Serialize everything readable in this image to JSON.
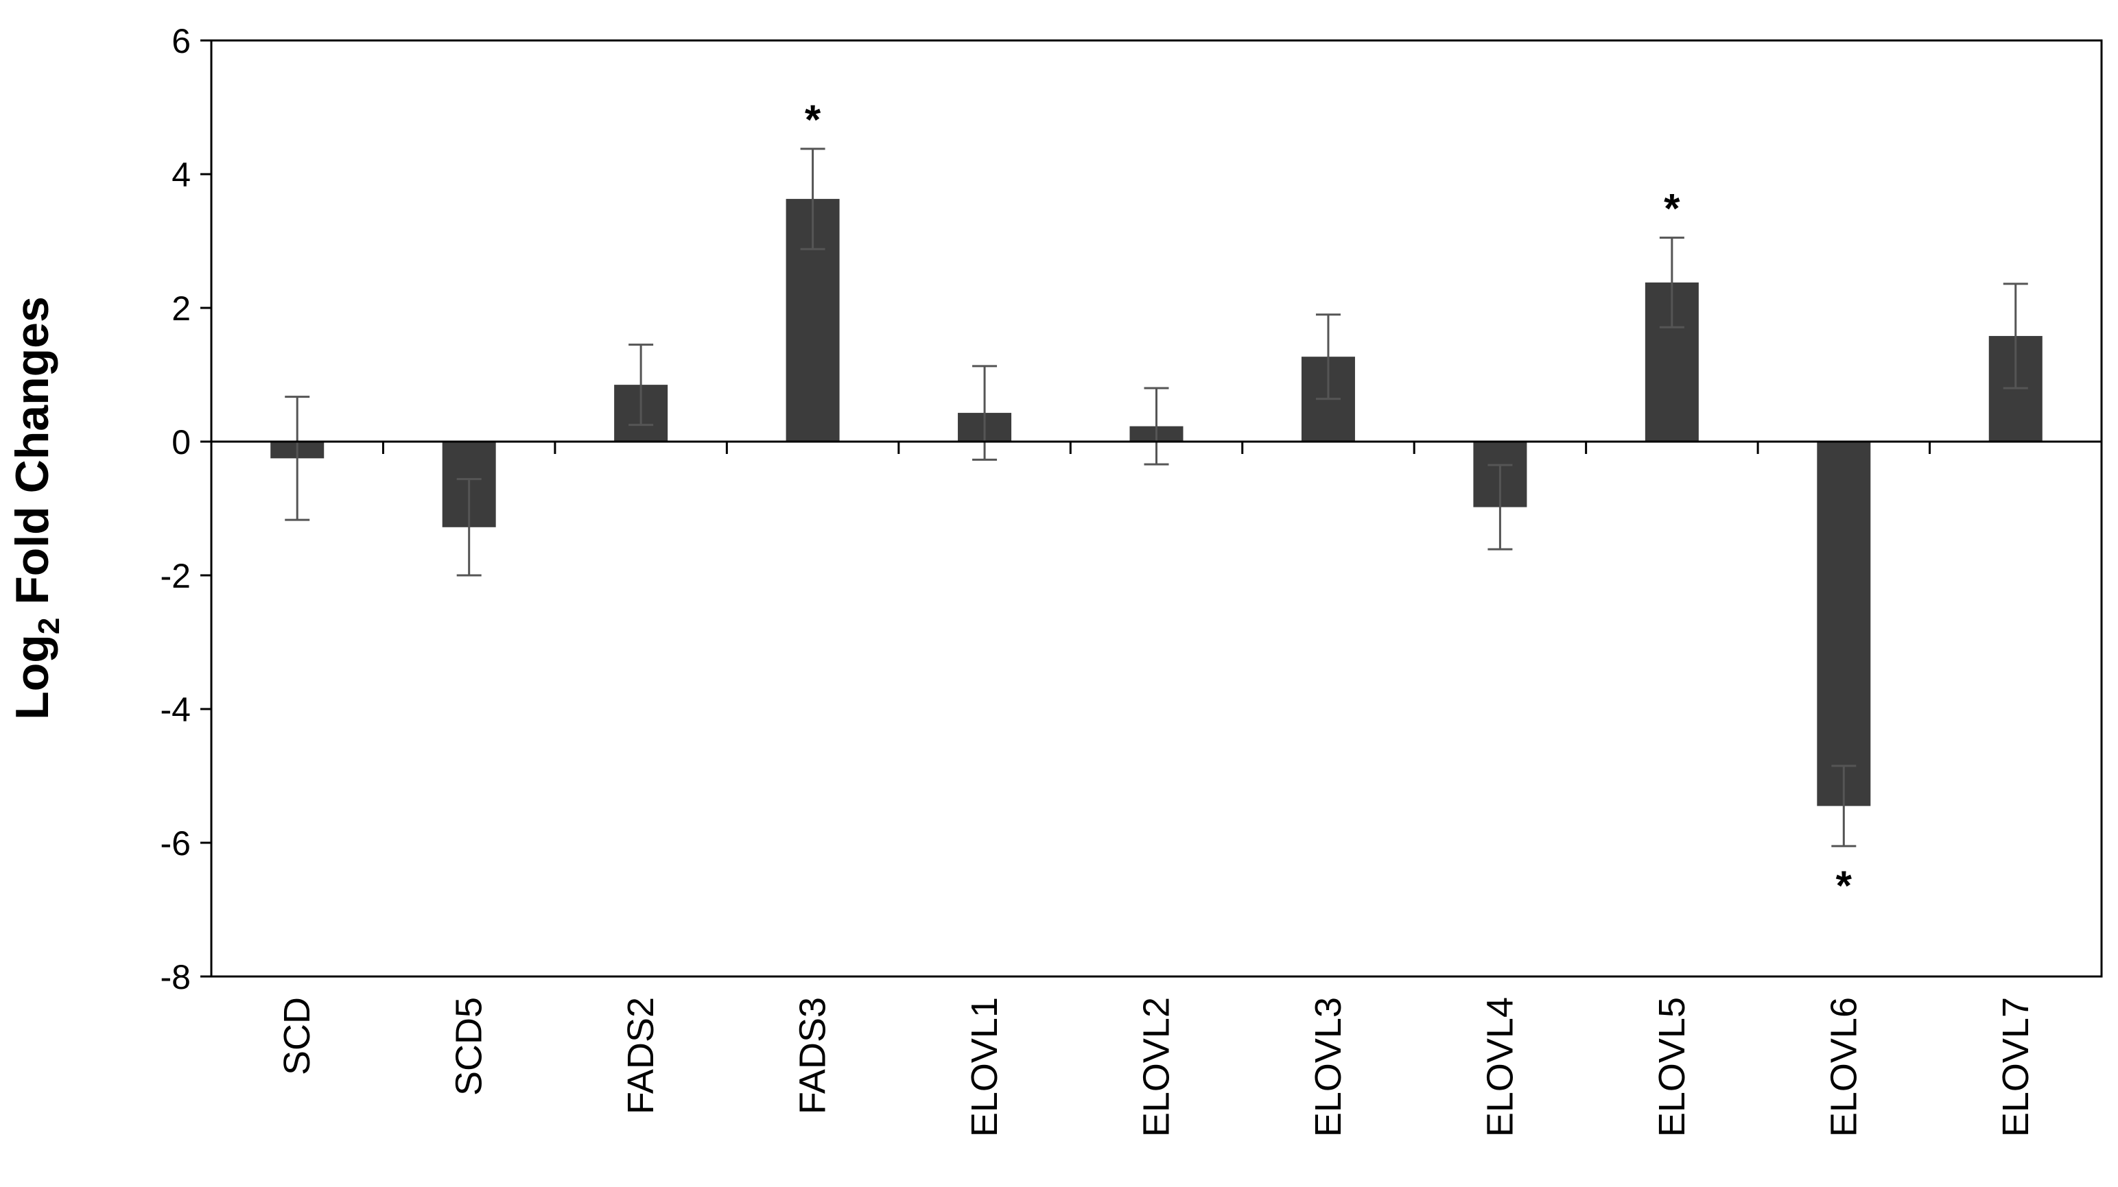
{
  "chart_data": {
    "type": "bar",
    "title": "",
    "xlabel": "",
    "ylabel": {
      "base": "Log",
      "subscript": "2",
      "rest": " Fold Changes"
    },
    "ylim": [
      -8,
      6
    ],
    "yticks": [
      "6",
      "4",
      "2",
      "0",
      "-2",
      "-4",
      "-6",
      "-8"
    ],
    "ytick_values": [
      6,
      4,
      2,
      0,
      -2,
      -4,
      -6,
      -8
    ],
    "grid": false,
    "legend": "none",
    "categories": [
      "SCD",
      "SCD5",
      "FADS2",
      "FADS3",
      "ELOVL1",
      "ELOVL2",
      "ELOVL3",
      "ELOVL4",
      "ELOVL5",
      "ELOVL6",
      "ELOVL7"
    ],
    "values": [
      -0.25,
      -1.28,
      0.85,
      3.63,
      0.43,
      0.23,
      1.27,
      -0.98,
      2.38,
      -5.45,
      1.58
    ],
    "error": [
      0.92,
      0.72,
      0.6,
      0.75,
      0.7,
      0.57,
      0.63,
      0.63,
      0.67,
      0.6,
      0.78
    ],
    "significance": [
      "",
      "",
      "",
      "*",
      "",
      "",
      "",
      "",
      "*",
      "*",
      ""
    ],
    "bar_color": "#3c3c3c",
    "error_bar_color": "#555555"
  }
}
